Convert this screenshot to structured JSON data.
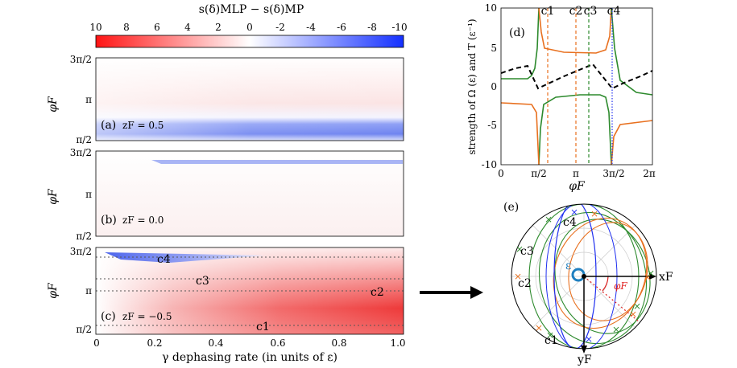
{
  "colorbar": {
    "title": "s(δ)MLP − s(δ)MP",
    "ticks": [
      "10",
      "8",
      "6",
      "4",
      "2",
      "0",
      "-2",
      "-4",
      "-6",
      "-8",
      "-10"
    ]
  },
  "heatmaps": {
    "ylabel": "φF",
    "yticks": [
      "3π/2",
      "π",
      "π/2"
    ],
    "xlabel": "γ dephasing rate (in units of ε)",
    "xticks": [
      "0",
      "0.2",
      "0.4",
      "0.6",
      "0.8",
      "1.0"
    ],
    "panels": [
      {
        "label": "(a)",
        "z": "zF = 0.5"
      },
      {
        "label": "(b)",
        "z": "zF = 0.0"
      },
      {
        "label": "(c)",
        "z": "zF = −0.5",
        "lines": [
          "c4",
          "c3",
          "c2",
          "c1"
        ]
      }
    ]
  },
  "panel_d": {
    "label": "(d)",
    "ylabel": "strength of Ω (ε) and T (ε⁻¹)",
    "xlabel": "φF",
    "xticks": [
      "0",
      "π/2",
      "π",
      "3π/2",
      "2π"
    ],
    "yticks": [
      "10",
      "5",
      "0",
      "-5",
      "-10"
    ],
    "top_labels": [
      "c1",
      "c2",
      "c3",
      "c4"
    ]
  },
  "panel_e": {
    "label": "(e)",
    "axis_x": "xF",
    "axis_y": "yF",
    "epsilon": "ε",
    "phi": "φF",
    "points": [
      "c1",
      "c2",
      "c3",
      "c4"
    ]
  },
  "colors": {
    "orange": "#e8701f",
    "green": "#2d8a2d",
    "blue": "#1f2ff0",
    "red": "#e02020",
    "black": "#000000"
  }
}
